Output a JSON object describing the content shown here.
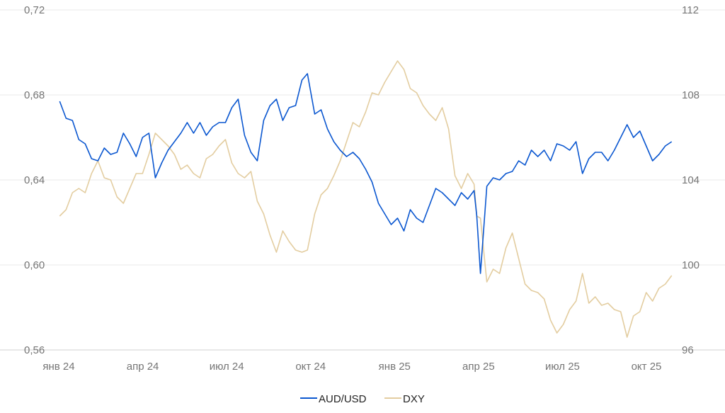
{
  "chart_data": {
    "type": "line",
    "title": "",
    "xlabel": "",
    "ylabel": "",
    "x_ticks": [
      "янв 24",
      "апр 24",
      "июл 24",
      "окт 24",
      "янв 25",
      "апр 25",
      "июл 25",
      "окт 25"
    ],
    "y_left": {
      "ticks": [
        "0,56",
        "0,60",
        "0,64",
        "0,68",
        "0,72"
      ],
      "range": [
        0.56,
        0.72
      ]
    },
    "y_right": {
      "ticks": [
        "96",
        "100",
        "104",
        "108",
        "112"
      ],
      "range": [
        96,
        112
      ]
    },
    "grid": "horizontal",
    "legend_position": "bottom-center",
    "series": [
      {
        "name": "AUD/USD",
        "axis": "left",
        "color": "#0b57d0",
        "x": [
          "2024-01-02",
          "2024-01-09",
          "2024-01-16",
          "2024-01-23",
          "2024-01-30",
          "2024-02-06",
          "2024-02-13",
          "2024-02-20",
          "2024-02-27",
          "2024-03-05",
          "2024-03-12",
          "2024-03-19",
          "2024-03-26",
          "2024-04-02",
          "2024-04-09",
          "2024-04-16",
          "2024-04-23",
          "2024-04-30",
          "2024-05-07",
          "2024-05-14",
          "2024-05-21",
          "2024-05-28",
          "2024-06-04",
          "2024-06-11",
          "2024-06-18",
          "2024-06-25",
          "2024-07-02",
          "2024-07-09",
          "2024-07-16",
          "2024-07-23",
          "2024-07-30",
          "2024-08-06",
          "2024-08-13",
          "2024-08-20",
          "2024-08-27",
          "2024-09-03",
          "2024-09-10",
          "2024-09-17",
          "2024-09-24",
          "2024-09-30",
          "2024-10-08",
          "2024-10-15",
          "2024-10-22",
          "2024-10-29",
          "2024-11-05",
          "2024-11-12",
          "2024-11-19",
          "2024-11-26",
          "2024-12-03",
          "2024-12-10",
          "2024-12-17",
          "2024-12-24",
          "2024-12-31",
          "2025-01-07",
          "2025-01-14",
          "2025-01-21",
          "2025-01-28",
          "2025-02-04",
          "2025-02-11",
          "2025-02-18",
          "2025-02-25",
          "2025-03-04",
          "2025-03-11",
          "2025-03-18",
          "2025-03-25",
          "2025-04-01",
          "2025-04-04",
          "2025-04-08",
          "2025-04-15",
          "2025-04-22",
          "2025-04-29",
          "2025-05-06",
          "2025-05-13",
          "2025-05-20",
          "2025-05-27",
          "2025-06-03",
          "2025-06-10",
          "2025-06-17",
          "2025-06-24",
          "2025-07-01",
          "2025-07-08",
          "2025-07-15",
          "2025-07-22",
          "2025-07-29",
          "2025-08-05",
          "2025-08-12",
          "2025-08-19",
          "2025-08-26",
          "2025-09-02",
          "2025-09-09",
          "2025-09-16",
          "2025-09-23",
          "2025-09-30",
          "2025-10-07",
          "2025-10-14",
          "2025-10-21",
          "2025-10-28",
          "2025-11-04"
        ],
        "values": [
          0.677,
          0.669,
          0.668,
          0.659,
          0.657,
          0.65,
          0.649,
          0.655,
          0.652,
          0.653,
          0.662,
          0.657,
          0.651,
          0.66,
          0.662,
          0.641,
          0.648,
          0.654,
          0.658,
          0.662,
          0.667,
          0.662,
          0.667,
          0.661,
          0.665,
          0.667,
          0.667,
          0.674,
          0.678,
          0.661,
          0.653,
          0.649,
          0.668,
          0.675,
          0.678,
          0.668,
          0.674,
          0.675,
          0.687,
          0.69,
          0.671,
          0.673,
          0.664,
          0.658,
          0.654,
          0.651,
          0.653,
          0.65,
          0.645,
          0.639,
          0.629,
          0.624,
          0.619,
          0.622,
          0.616,
          0.626,
          0.622,
          0.62,
          0.628,
          0.636,
          0.634,
          0.631,
          0.628,
          0.634,
          0.631,
          0.635,
          0.623,
          0.596,
          0.637,
          0.641,
          0.64,
          0.643,
          0.644,
          0.649,
          0.647,
          0.654,
          0.651,
          0.654,
          0.649,
          0.657,
          0.656,
          0.654,
          0.658,
          0.643,
          0.65,
          0.653,
          0.653,
          0.649,
          0.654,
          0.66,
          0.666,
          0.66,
          0.663,
          0.656,
          0.649,
          0.652,
          0.656,
          0.658
        ]
      },
      {
        "name": "DXY",
        "axis": "right",
        "color": "#e3cda0",
        "x": [
          "2024-01-02",
          "2024-01-09",
          "2024-01-16",
          "2024-01-23",
          "2024-01-30",
          "2024-02-06",
          "2024-02-13",
          "2024-02-20",
          "2024-02-27",
          "2024-03-05",
          "2024-03-12",
          "2024-03-19",
          "2024-03-26",
          "2024-04-02",
          "2024-04-09",
          "2024-04-16",
          "2024-04-23",
          "2024-04-30",
          "2024-05-07",
          "2024-05-14",
          "2024-05-21",
          "2024-05-28",
          "2024-06-04",
          "2024-06-11",
          "2024-06-18",
          "2024-06-25",
          "2024-07-02",
          "2024-07-09",
          "2024-07-16",
          "2024-07-23",
          "2024-07-30",
          "2024-08-06",
          "2024-08-13",
          "2024-08-20",
          "2024-08-27",
          "2024-09-03",
          "2024-09-10",
          "2024-09-17",
          "2024-09-24",
          "2024-09-30",
          "2024-10-08",
          "2024-10-15",
          "2024-10-22",
          "2024-10-29",
          "2024-11-05",
          "2024-11-12",
          "2024-11-19",
          "2024-11-26",
          "2024-12-03",
          "2024-12-10",
          "2024-12-17",
          "2024-12-24",
          "2024-12-31",
          "2025-01-07",
          "2025-01-14",
          "2025-01-21",
          "2025-01-28",
          "2025-02-04",
          "2025-02-11",
          "2025-02-18",
          "2025-02-25",
          "2025-03-04",
          "2025-03-11",
          "2025-03-18",
          "2025-03-25",
          "2025-04-01",
          "2025-04-04",
          "2025-04-08",
          "2025-04-15",
          "2025-04-22",
          "2025-04-29",
          "2025-05-06",
          "2025-05-13",
          "2025-05-20",
          "2025-05-27",
          "2025-06-03",
          "2025-06-10",
          "2025-06-17",
          "2025-06-24",
          "2025-07-01",
          "2025-07-08",
          "2025-07-15",
          "2025-07-22",
          "2025-07-29",
          "2025-08-05",
          "2025-08-12",
          "2025-08-19",
          "2025-08-26",
          "2025-09-02",
          "2025-09-09",
          "2025-09-16",
          "2025-09-23",
          "2025-09-30",
          "2025-10-07",
          "2025-10-14",
          "2025-10-21",
          "2025-10-28",
          "2025-11-04"
        ],
        "values": [
          102.3,
          102.6,
          103.4,
          103.6,
          103.4,
          104.3,
          104.9,
          104.1,
          104.0,
          103.2,
          102.9,
          103.6,
          104.3,
          104.3,
          105.2,
          106.2,
          105.9,
          105.6,
          105.2,
          104.5,
          104.7,
          104.3,
          104.1,
          105.0,
          105.2,
          105.6,
          105.9,
          104.8,
          104.3,
          104.1,
          104.4,
          103.0,
          102.4,
          101.4,
          100.6,
          101.6,
          101.1,
          100.7,
          100.6,
          100.7,
          102.4,
          103.3,
          103.6,
          104.2,
          104.9,
          105.8,
          106.7,
          106.5,
          107.2,
          108.1,
          108.0,
          108.6,
          109.1,
          109.6,
          109.2,
          108.3,
          108.1,
          107.5,
          107.1,
          106.8,
          107.4,
          106.4,
          104.2,
          103.6,
          104.3,
          103.8,
          102.3,
          102.2,
          99.2,
          99.8,
          99.6,
          100.8,
          101.5,
          100.3,
          99.1,
          98.8,
          98.7,
          98.4,
          97.4,
          96.8,
          97.2,
          97.9,
          98.3,
          99.6,
          98.2,
          98.5,
          98.1,
          98.2,
          97.9,
          97.8,
          96.6,
          97.6,
          97.8,
          98.7,
          98.3,
          98.9,
          99.1,
          99.5
        ]
      }
    ]
  }
}
